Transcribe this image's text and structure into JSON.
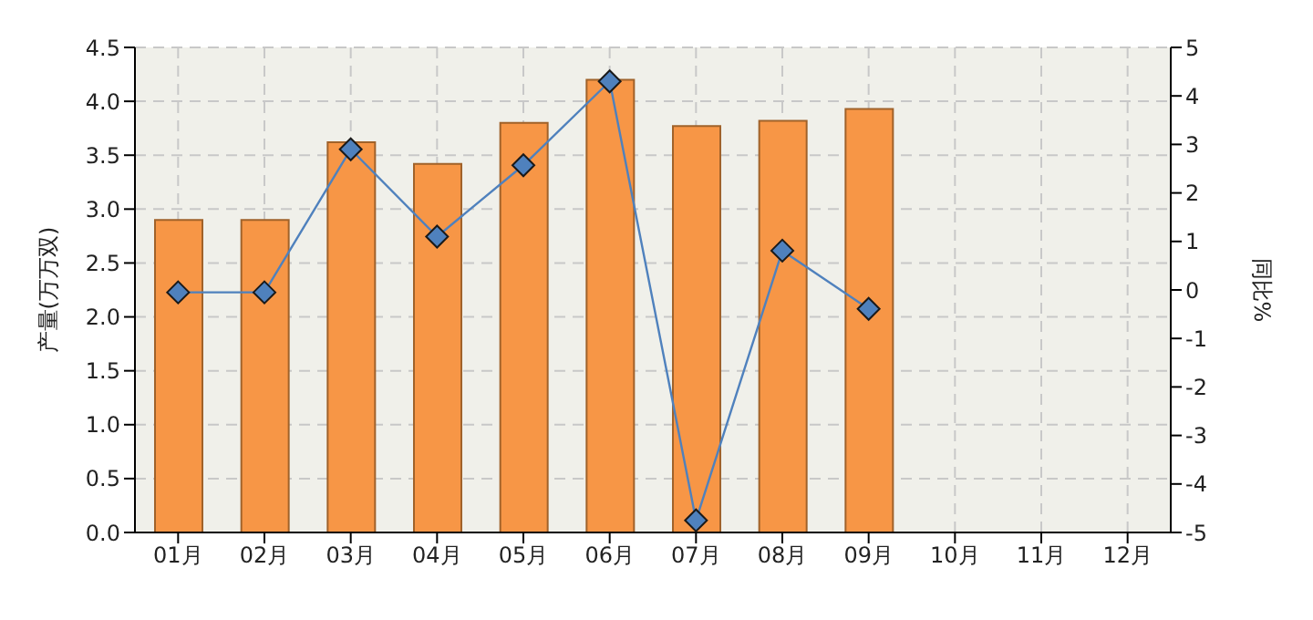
{
  "chart_data": {
    "type": "bar",
    "ylabel": "产量(万万双)",
    "y2label": "同比%",
    "categories": [
      "01月",
      "02月",
      "03月",
      "04月",
      "05月",
      "06月",
      "07月",
      "08月",
      "09月",
      "10月",
      "11月",
      "12月"
    ],
    "series": [
      {
        "color": "#f79646",
        "values": [
          2.9,
          2.9,
          3.62,
          3.42,
          3.8,
          4.2,
          3.77,
          3.82,
          3.93,
          null,
          null,
          null
        ]
      },
      {
        "type": "line",
        "axis": "y2",
        "color": "#4f81bd",
        "marker": "diamond",
        "values": [
          -0.05,
          -0.05,
          2.9,
          1.1,
          2.57,
          4.3,
          -4.75,
          0.81,
          -0.39,
          null,
          null,
          null
        ]
      }
    ],
    "ylim": [
      0,
      4.5
    ],
    "yticks": [
      {
        "value": 0,
        "label": "0.0"
      },
      0.5,
      {
        "value": 1,
        "label": "1.0"
      },
      1.5,
      {
        "value": 2,
        "label": "2.0"
      },
      2.5,
      {
        "value": 3,
        "label": "3.0"
      },
      3.5,
      {
        "value": 4,
        "label": "4.0"
      },
      4.5
    ],
    "y2lim": [
      -5,
      5
    ],
    "y2ticks": [
      -5,
      -4,
      -3,
      -2,
      -1,
      0,
      1,
      2,
      3,
      4,
      5
    ],
    "grid": true
  }
}
